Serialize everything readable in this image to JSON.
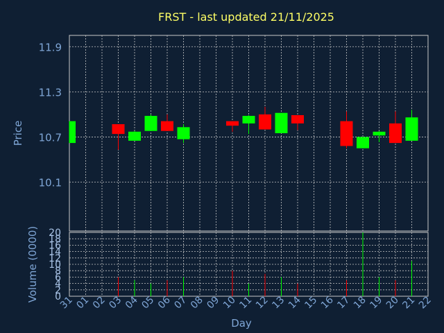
{
  "chart_data": {
    "type": "candlestick",
    "title": "FRST - last updated 21/11/2025",
    "xlabel": "Day",
    "price_panel": {
      "ylabel": "Price",
      "yticks": [
        "10.1",
        "10.7",
        "11.3",
        "11.9"
      ],
      "ylim": [
        9.45,
        12.05
      ]
    },
    "volume_panel": {
      "ylabel": "Volume (0000)",
      "yticks": [
        "0",
        "2",
        "4",
        "6",
        "8",
        "10",
        "12",
        "14",
        "16",
        "18",
        "20"
      ],
      "ylim": [
        0,
        20
      ]
    },
    "x_ticks": [
      "31",
      "01",
      "02",
      "03",
      "04",
      "05",
      "06",
      "07",
      "08",
      "09",
      "10",
      "11",
      "12",
      "13",
      "14",
      "15",
      "16",
      "17",
      "18",
      "19",
      "20",
      "21",
      "22"
    ],
    "grid": true,
    "colors": {
      "up": "#00ff00",
      "down": "#ff0000",
      "background": "#0f1f33",
      "grid": "#c8c8c8",
      "title": "#ffff66",
      "labels": "#7fa6d6"
    },
    "candles": [
      {
        "day": "31",
        "open": 10.62,
        "close": 10.91,
        "high": 10.91,
        "low": 10.62,
        "volume": 0
      },
      {
        "day": "03",
        "open": 10.87,
        "close": 10.74,
        "high": 10.87,
        "low": 10.53,
        "volume": 6
      },
      {
        "day": "04",
        "open": 10.65,
        "close": 10.77,
        "high": 10.78,
        "low": 10.65,
        "volume": 5
      },
      {
        "day": "05",
        "open": 10.78,
        "close": 10.98,
        "high": 11.0,
        "low": 10.78,
        "volume": 4
      },
      {
        "day": "06",
        "open": 10.91,
        "close": 10.78,
        "high": 11.0,
        "low": 10.78,
        "volume": 5
      },
      {
        "day": "07",
        "open": 10.67,
        "close": 10.83,
        "high": 10.87,
        "low": 10.62,
        "volume": 6
      },
      {
        "day": "10",
        "open": 10.91,
        "close": 10.85,
        "high": 10.91,
        "low": 10.77,
        "volume": 8
      },
      {
        "day": "11",
        "open": 10.88,
        "close": 10.98,
        "high": 10.99,
        "low": 10.74,
        "volume": 4
      },
      {
        "day": "12",
        "open": 11.0,
        "close": 10.8,
        "high": 11.1,
        "low": 10.8,
        "volume": 7
      },
      {
        "day": "13",
        "open": 10.75,
        "close": 11.02,
        "high": 11.02,
        "low": 10.75,
        "volume": 6
      },
      {
        "day": "14",
        "open": 10.99,
        "close": 10.88,
        "high": 10.99,
        "low": 10.79,
        "volume": 4
      },
      {
        "day": "17",
        "open": 10.91,
        "close": 10.58,
        "high": 11.04,
        "low": 10.55,
        "volume": 5
      },
      {
        "day": "18",
        "open": 10.55,
        "close": 10.7,
        "high": 10.7,
        "low": 10.55,
        "volume": 20
      },
      {
        "day": "19",
        "open": 10.72,
        "close": 10.77,
        "high": 10.78,
        "low": 10.63,
        "volume": 6
      },
      {
        "day": "20",
        "open": 10.88,
        "close": 10.62,
        "high": 11.04,
        "low": 10.62,
        "volume": 5
      },
      {
        "day": "21",
        "open": 10.65,
        "close": 10.96,
        "high": 11.06,
        "low": 10.65,
        "volume": 11
      }
    ]
  }
}
